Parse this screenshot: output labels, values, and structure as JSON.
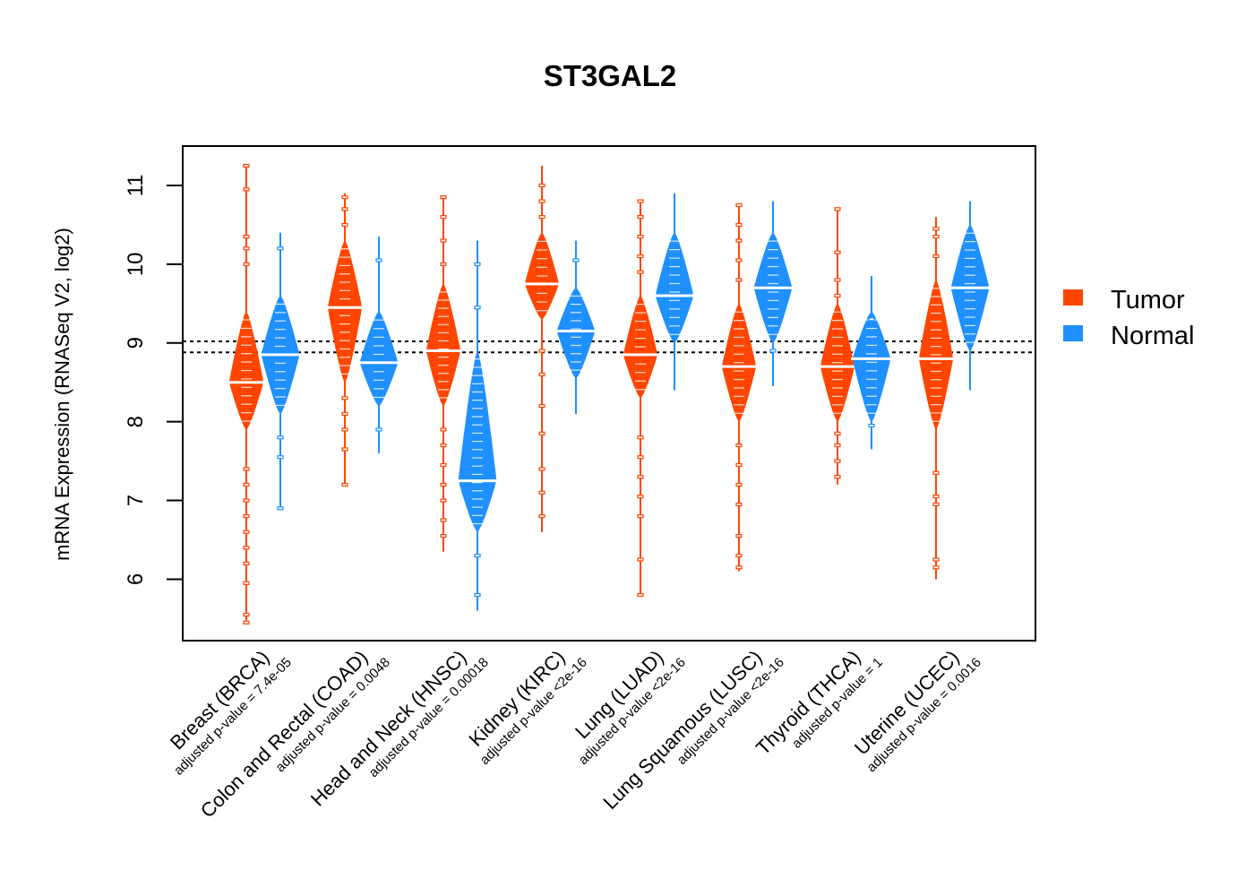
{
  "chart_data": {
    "type": "violin",
    "title": "ST3GAL2",
    "xlabel": "",
    "ylabel": "mRNA Expression (RNASeq V2, log2)",
    "ylim": [
      5.22,
      11.5
    ],
    "yticks": [
      6,
      7,
      8,
      9,
      10,
      11
    ],
    "grid": false,
    "reference_lines": [
      9.02,
      8.88
    ],
    "legend": {
      "placement": "right",
      "entries": [
        {
          "name": "Tumor",
          "color": "#FF4500"
        },
        {
          "name": "Normal",
          "color": "#1E90FF"
        }
      ]
    },
    "categories": [
      {
        "label": "Breast (BRCA)",
        "pvalue_label": "adjusted p-value = 7.4e-05"
      },
      {
        "label": "Colon and Rectal (COAD)",
        "pvalue_label": "adjusted p-value = 0.0048"
      },
      {
        "label": "Head and Neck (HNSC)",
        "pvalue_label": "adjusted p-value = 0.00018"
      },
      {
        "label": "Kidney (KIRC)",
        "pvalue_label": "adjusted p-value <2e-16"
      },
      {
        "label": "Lung (LUAD)",
        "pvalue_label": "adjusted p-value <2e-16"
      },
      {
        "label": "Lung Squamous (LUSC)",
        "pvalue_label": "adjusted p-value <2e-16"
      },
      {
        "label": "Thyroid (THCA)",
        "pvalue_label": "adjusted p-value = 1"
      },
      {
        "label": "Uterine (UCEC)",
        "pvalue_label": "adjusted p-value = 0.0016"
      }
    ],
    "series": [
      {
        "name": "Tumor",
        "color": "#FF4500",
        "values": [
          {
            "median": 8.5,
            "body": [
              7.9,
              9.4
            ],
            "range": [
              5.45,
              11.25
            ],
            "outliers": [
              5.45,
              5.55,
              5.95,
              6.2,
              6.4,
              6.6,
              6.8,
              7.0,
              7.2,
              7.4,
              10.0,
              10.2,
              10.35,
              10.95,
              11.25
            ]
          },
          {
            "median": 9.45,
            "body": [
              8.5,
              10.3
            ],
            "range": [
              7.2,
              10.9
            ],
            "outliers": [
              7.2,
              7.65,
              7.9,
              8.1,
              8.3,
              10.5,
              10.7,
              10.85
            ]
          },
          {
            "median": 8.9,
            "body": [
              8.2,
              9.75
            ],
            "range": [
              6.35,
              10.85
            ],
            "outliers": [
              6.55,
              6.75,
              7.0,
              7.2,
              7.45,
              7.7,
              7.9,
              10.0,
              10.3,
              10.6,
              10.85
            ]
          },
          {
            "median": 9.75,
            "body": [
              9.3,
              10.4
            ],
            "range": [
              6.6,
              11.25
            ],
            "outliers": [
              6.8,
              7.1,
              7.4,
              7.85,
              8.2,
              8.6,
              8.9,
              10.6,
              10.8,
              11.0
            ]
          },
          {
            "median": 8.85,
            "body": [
              8.3,
              9.6
            ],
            "range": [
              5.8,
              10.8
            ],
            "outliers": [
              5.8,
              6.25,
              6.8,
              7.05,
              7.3,
              7.55,
              7.8,
              9.9,
              10.1,
              10.35,
              10.6,
              10.8
            ]
          },
          {
            "median": 8.7,
            "body": [
              8.0,
              9.5
            ],
            "range": [
              6.1,
              10.75
            ],
            "outliers": [
              6.15,
              6.3,
              6.55,
              6.95,
              7.2,
              7.45,
              7.7,
              9.8,
              10.05,
              10.3,
              10.5,
              10.75
            ]
          },
          {
            "median": 8.7,
            "body": [
              8.0,
              9.5
            ],
            "range": [
              7.2,
              10.7
            ],
            "outliers": [
              7.3,
              7.5,
              7.7,
              7.85,
              9.6,
              9.8,
              10.15,
              10.7
            ]
          },
          {
            "median": 8.8,
            "body": [
              7.9,
              9.8
            ],
            "range": [
              6.0,
              10.6
            ],
            "outliers": [
              6.15,
              6.25,
              6.95,
              7.05,
              7.35,
              10.1,
              10.35,
              10.45
            ]
          }
        ]
      },
      {
        "name": "Normal",
        "color": "#1E90FF",
        "values": [
          {
            "median": 8.85,
            "body": [
              8.1,
              9.6
            ],
            "range": [
              6.9,
              10.4
            ],
            "outliers": [
              6.9,
              7.55,
              7.8,
              10.2
            ]
          },
          {
            "median": 8.75,
            "body": [
              8.2,
              9.4
            ],
            "range": [
              7.6,
              10.35
            ],
            "outliers": [
              7.9,
              10.05
            ]
          },
          {
            "median": 7.25,
            "body": [
              6.6,
              8.9
            ],
            "range": [
              5.6,
              10.3
            ],
            "outliers": [
              5.8,
              6.3,
              9.45,
              10.0
            ]
          },
          {
            "median": 9.15,
            "body": [
              8.55,
              9.7
            ],
            "range": [
              8.1,
              10.3
            ],
            "outliers": [
              10.05
            ]
          },
          {
            "median": 9.6,
            "body": [
              9.0,
              10.4
            ],
            "range": [
              8.4,
              10.9
            ],
            "outliers": []
          },
          {
            "median": 9.7,
            "body": [
              9.0,
              10.4
            ],
            "range": [
              8.45,
              10.8
            ],
            "outliers": [
              8.9
            ]
          },
          {
            "median": 8.8,
            "body": [
              8.0,
              9.4
            ],
            "range": [
              7.65,
              9.85
            ],
            "outliers": [
              7.95,
              9.3
            ]
          },
          {
            "median": 9.7,
            "body": [
              8.9,
              10.5
            ],
            "range": [
              8.4,
              10.8
            ],
            "outliers": []
          }
        ]
      }
    ]
  }
}
